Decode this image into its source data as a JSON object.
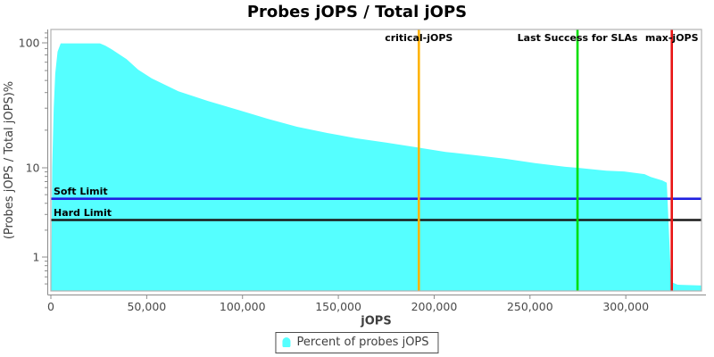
{
  "chart_data": {
    "type": "area",
    "title": "Probes jOPS / Total jOPS",
    "xlabel": "jOPS",
    "ylabel": "(Probes jOPS / Total jOPS)%",
    "x_ticks": [
      0,
      50000,
      100000,
      150000,
      200000,
      250000,
      300000
    ],
    "y_ticks_major": [
      100,
      10,
      1
    ],
    "y_ticks_minor": [
      120,
      110,
      90,
      80,
      70,
      60,
      50,
      40,
      30,
      20,
      9,
      8,
      7,
      6,
      5,
      4,
      3,
      2,
      0.9,
      0.8,
      0.7,
      0.6,
      0.5
    ],
    "y_scale": "log",
    "xlim": [
      0,
      339500
    ],
    "ylim": [
      0.42,
      128
    ],
    "grid": false,
    "legend_position": "bottom",
    "series": [
      {
        "name": "Percent of probes jOPS",
        "color": "#55FFFF",
        "points": [
          [
            200,
            0.45
          ],
          [
            700,
            10
          ],
          [
            1500,
            30
          ],
          [
            2300,
            57
          ],
          [
            3500,
            85
          ],
          [
            5100,
            99
          ],
          [
            25600,
            99
          ],
          [
            28400,
            95
          ],
          [
            31600,
            89
          ],
          [
            39500,
            74
          ],
          [
            45600,
            61
          ],
          [
            52600,
            52
          ],
          [
            66500,
            41
          ],
          [
            81900,
            34.3
          ],
          [
            97700,
            29.1
          ],
          [
            113000,
            24.7
          ],
          [
            128400,
            21.3
          ],
          [
            144200,
            19
          ],
          [
            159500,
            17.2
          ],
          [
            174900,
            15.9
          ],
          [
            190700,
            14.6
          ],
          [
            206000,
            13.4
          ],
          [
            221400,
            12.6
          ],
          [
            237200,
            11.8
          ],
          [
            252600,
            10.9
          ],
          [
            267900,
            10.2
          ],
          [
            274800,
            10
          ],
          [
            289800,
            9.3
          ],
          [
            299100,
            9.1
          ],
          [
            309800,
            8.5
          ],
          [
            313000,
            7.9
          ],
          [
            319100,
            7.2
          ],
          [
            321400,
            6.8
          ],
          [
            322300,
            2.4
          ],
          [
            323300,
            0.76
          ],
          [
            324200,
            0.52
          ],
          [
            327000,
            0.49
          ],
          [
            339500,
            0.48
          ]
        ]
      }
    ],
    "vlines": [
      {
        "label": "critical-jOPS",
        "x": 192000,
        "color": "#FFB400"
      },
      {
        "label": "Last Success for SLAs",
        "x": 274800,
        "color": "#00DF00"
      },
      {
        "label": "max-jOPS",
        "x": 324000,
        "color": "#E81414"
      }
    ],
    "hlines": [
      {
        "label": "Soft Limit",
        "y": 4.5,
        "color": "#2020E0"
      },
      {
        "label": "Hard Limit",
        "y": 2.6,
        "color": "#1a1a1a"
      }
    ],
    "legend": {
      "label": "Percent of probes jOPS",
      "marker_color": "#55FFFF"
    },
    "colors": {
      "axis_line": "#8c8c8c",
      "plot_border": "#b0b0b0",
      "tick_label": "#4a4a4a",
      "axis_title": "#3f3f3f",
      "marker_label": "#000000"
    }
  }
}
